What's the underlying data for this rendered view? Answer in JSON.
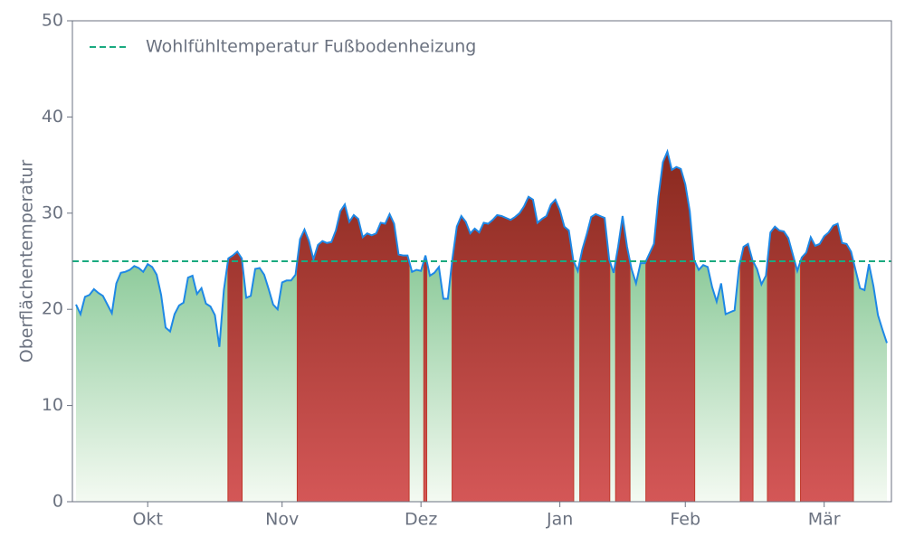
{
  "chart_data": {
    "type": "area",
    "y_label": "Oberflächentemperatur",
    "categories": [
      null,
      null,
      null,
      null,
      null,
      null,
      null,
      null,
      null,
      null,
      null,
      null,
      null,
      null,
      null,
      null,
      "Okt",
      null,
      null,
      null,
      null,
      null,
      null,
      null,
      null,
      null,
      null,
      null,
      null,
      null,
      null,
      null,
      null,
      null,
      null,
      null,
      null,
      null,
      null,
      null,
      null,
      null,
      null,
      null,
      null,
      null,
      "Nov",
      null,
      null,
      null,
      null,
      null,
      null,
      null,
      null,
      null,
      null,
      null,
      null,
      null,
      null,
      null,
      null,
      null,
      null,
      null,
      null,
      null,
      null,
      null,
      null,
      null,
      null,
      null,
      null,
      null,
      null,
      "Dez",
      null,
      null,
      null,
      null,
      null,
      null,
      null,
      null,
      null,
      null,
      null,
      null,
      null,
      null,
      null,
      null,
      null,
      null,
      null,
      null,
      null,
      null,
      null,
      null,
      null,
      null,
      null,
      null,
      null,
      null,
      "Jan",
      null,
      null,
      null,
      null,
      null,
      null,
      null,
      null,
      null,
      null,
      null,
      null,
      null,
      null,
      null,
      null,
      null,
      null,
      null,
      null,
      null,
      null,
      null,
      null,
      null,
      null,
      null,
      "Feb",
      null,
      null,
      null,
      null,
      null,
      null,
      null,
      null,
      null,
      null,
      null,
      null,
      null,
      null,
      null,
      null,
      null,
      null,
      null,
      null,
      null,
      null,
      null,
      null,
      null,
      null,
      null,
      null,
      null,
      null,
      "Mär",
      null,
      null,
      null,
      null,
      null,
      null,
      null,
      null,
      null,
      null,
      null,
      null,
      null,
      null
    ],
    "values": [
      20.5,
      19.5,
      21.3,
      21.5,
      22.1,
      21.7,
      21.4,
      20.5,
      19.6,
      22.7,
      23.8,
      23.9,
      24.1,
      24.5,
      24.3,
      23.9,
      24.7,
      24.4,
      23.6,
      21.5,
      18.1,
      17.7,
      19.5,
      20.4,
      20.7,
      23.3,
      23.5,
      21.6,
      22.2,
      20.6,
      20.3,
      19.4,
      16.1,
      22.0,
      25.3,
      25.6,
      26.0,
      25.3,
      21.2,
      21.4,
      24.2,
      24.3,
      23.6,
      22.1,
      20.5,
      20.0,
      22.8,
      23.0,
      23.0,
      23.6,
      27.3,
      28.3,
      27.1,
      25.2,
      26.7,
      27.1,
      26.9,
      27.0,
      28.2,
      30.2,
      30.9,
      29.1,
      29.8,
      29.4,
      27.5,
      27.9,
      27.7,
      27.9,
      29.0,
      28.9,
      29.9,
      28.9,
      25.7,
      25.6,
      25.6,
      23.9,
      24.1,
      24.0,
      25.6,
      23.5,
      23.8,
      24.4,
      21.1,
      21.1,
      25.2,
      28.6,
      29.7,
      29.1,
      27.9,
      28.4,
      28.0,
      29.0,
      28.9,
      29.3,
      29.8,
      29.7,
      29.5,
      29.3,
      29.6,
      30.0,
      30.7,
      31.7,
      31.4,
      29.0,
      29.4,
      29.7,
      30.9,
      31.4,
      30.3,
      28.6,
      28.2,
      25.1,
      24.0,
      26.2,
      27.8,
      29.6,
      29.9,
      29.7,
      29.5,
      25.2,
      23.8,
      26.5,
      29.7,
      26.5,
      24.2,
      22.7,
      24.8,
      24.8,
      25.8,
      26.8,
      31.7,
      35.3,
      36.4,
      34.5,
      34.8,
      34.6,
      33.0,
      30.2,
      25.1,
      24.1,
      24.6,
      24.4,
      22.3,
      20.8,
      22.7,
      19.5,
      19.7,
      19.9,
      24.4,
      26.5,
      26.8,
      25.1,
      24.2,
      22.6,
      23.5,
      28.0,
      28.6,
      28.2,
      28.1,
      27.4,
      25.7,
      24.0,
      25.4,
      25.9,
      27.5,
      26.6,
      26.8,
      27.6,
      28.0,
      28.7,
      28.9,
      26.9,
      26.8,
      26.0,
      24.1,
      22.2,
      22.0,
      24.7,
      22.4,
      19.4,
      17.9,
      16.5
    ],
    "color": "#1e88e5",
    "threshold": {
      "name": "Wohlfühltemperatur Fußbodenheizung",
      "value": 25,
      "color": "#1aaa80"
    },
    "ylim": [
      0,
      50
    ],
    "yticks": [
      0,
      10,
      20,
      30,
      40,
      50
    ]
  }
}
